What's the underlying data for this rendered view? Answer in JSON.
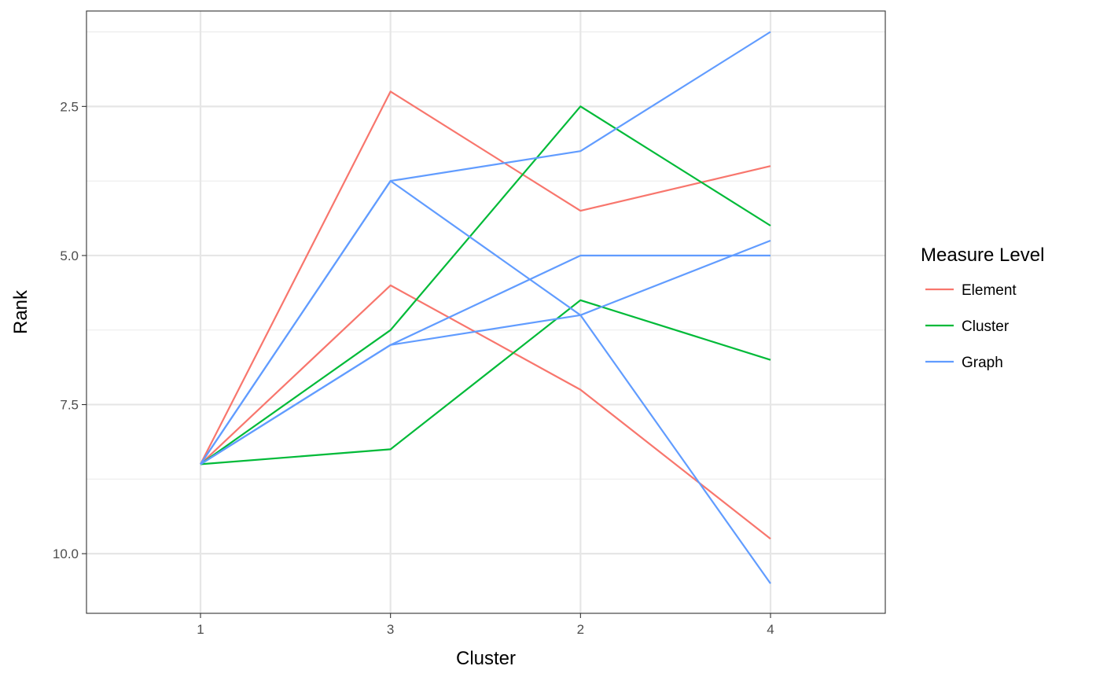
{
  "chart_data": {
    "type": "line",
    "xlabel": "Cluster",
    "ylabel": "Rank",
    "categories": [
      "1",
      "3",
      "2",
      "4"
    ],
    "y_reversed": true,
    "ylim": [
      11.0,
      0.9
    ],
    "yticks": [
      "2.5",
      "5.0",
      "7.5",
      "10.0"
    ],
    "grid": true,
    "legend_position": "right",
    "legend_title": "Measure Level",
    "legend": [
      {
        "label": "Element",
        "color": "#F8766D"
      },
      {
        "label": "Cluster",
        "color": "#00BA38"
      },
      {
        "label": "Graph",
        "color": "#619CFF"
      }
    ],
    "series": [
      {
        "group": "Element",
        "color": "#F8766D",
        "values": [
          8.5,
          2.25,
          4.25,
          3.5
        ]
      },
      {
        "group": "Element",
        "color": "#F8766D",
        "values": [
          8.5,
          5.5,
          7.25,
          9.75
        ]
      },
      {
        "group": "Cluster",
        "color": "#00BA38",
        "values": [
          8.5,
          6.25,
          2.5,
          4.5
        ]
      },
      {
        "group": "Cluster",
        "color": "#00BA38",
        "values": [
          8.5,
          8.25,
          5.75,
          6.75
        ]
      },
      {
        "group": "Graph",
        "color": "#619CFF",
        "values": [
          8.5,
          3.75,
          3.25,
          1.25
        ]
      },
      {
        "group": "Graph",
        "color": "#619CFF",
        "values": [
          8.5,
          3.75,
          6.0,
          10.5
        ]
      },
      {
        "group": "Graph",
        "color": "#619CFF",
        "values": [
          8.5,
          6.5,
          5.0,
          5.0
        ]
      },
      {
        "group": "Graph",
        "color": "#619CFF",
        "values": [
          8.5,
          6.5,
          6.0,
          4.75
        ]
      }
    ]
  }
}
